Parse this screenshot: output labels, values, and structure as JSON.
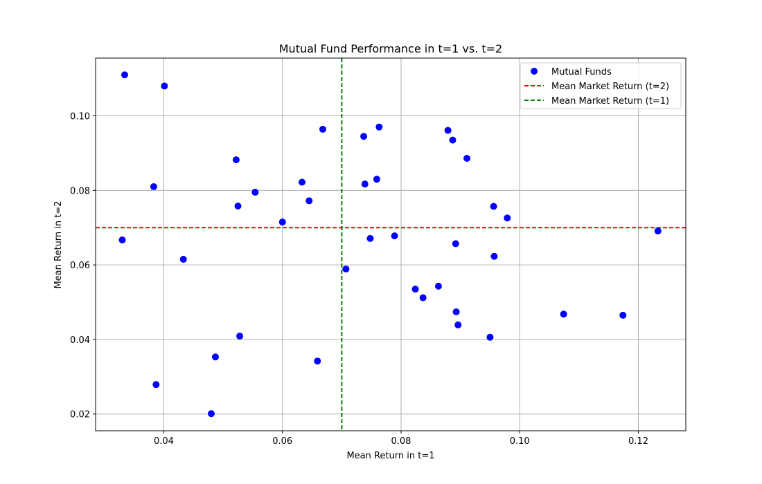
{
  "chart_data": {
    "type": "scatter",
    "title": "Mutual Fund Performance in t=1 vs. t=2",
    "xlabel": "Mean Return in t=1",
    "ylabel": "Mean Return in t=2",
    "xlim": [
      0.0285,
      0.128
    ],
    "ylim": [
      0.0155,
      0.1155
    ],
    "xticks": [
      0.04,
      0.06,
      0.08,
      0.1,
      0.12
    ],
    "xtick_labels": [
      "0.04",
      "0.06",
      "0.08",
      "0.10",
      "0.12"
    ],
    "yticks": [
      0.02,
      0.04,
      0.06,
      0.08,
      0.1
    ],
    "ytick_labels": [
      "0.02",
      "0.04",
      "0.06",
      "0.08",
      "0.10"
    ],
    "grid": true,
    "legend_position": "top-right",
    "series": [
      {
        "name": "Mutual Funds",
        "kind": "scatter",
        "color": "#0000ff",
        "points": [
          [
            0.0334,
            0.111
          ],
          [
            0.0401,
            0.108
          ],
          [
            0.033,
            0.0667
          ],
          [
            0.0383,
            0.081
          ],
          [
            0.0433,
            0.0615
          ],
          [
            0.0387,
            0.0279
          ],
          [
            0.048,
            0.0201
          ],
          [
            0.0487,
            0.0353
          ],
          [
            0.0522,
            0.0882
          ],
          [
            0.0525,
            0.0758
          ],
          [
            0.0528,
            0.0409
          ],
          [
            0.0554,
            0.0795
          ],
          [
            0.06,
            0.0715
          ],
          [
            0.0633,
            0.0822
          ],
          [
            0.0645,
            0.0772
          ],
          [
            0.0659,
            0.0342
          ],
          [
            0.0668,
            0.0964
          ],
          [
            0.0707,
            0.0589
          ],
          [
            0.0737,
            0.0945
          ],
          [
            0.0739,
            0.0817
          ],
          [
            0.0748,
            0.0671
          ],
          [
            0.0759,
            0.083
          ],
          [
            0.0763,
            0.097
          ],
          [
            0.0789,
            0.0678
          ],
          [
            0.0824,
            0.0535
          ],
          [
            0.0837,
            0.0512
          ],
          [
            0.0863,
            0.0543
          ],
          [
            0.0879,
            0.0961
          ],
          [
            0.0887,
            0.0935
          ],
          [
            0.0892,
            0.0657
          ],
          [
            0.0893,
            0.0474
          ],
          [
            0.0896,
            0.0439
          ],
          [
            0.0911,
            0.0886
          ],
          [
            0.095,
            0.0406
          ],
          [
            0.0956,
            0.0757
          ],
          [
            0.0957,
            0.0623
          ],
          [
            0.0979,
            0.0726
          ],
          [
            0.1074,
            0.0468
          ],
          [
            0.1174,
            0.0465
          ],
          [
            0.1233,
            0.0691
          ]
        ]
      },
      {
        "name": "Mean Market Return (t=2)",
        "kind": "hline",
        "color": "#ff0000",
        "value": 0.07
      },
      {
        "name": "Mean Market Return (t=1)",
        "kind": "vline",
        "color": "#008000",
        "value": 0.07
      }
    ]
  }
}
